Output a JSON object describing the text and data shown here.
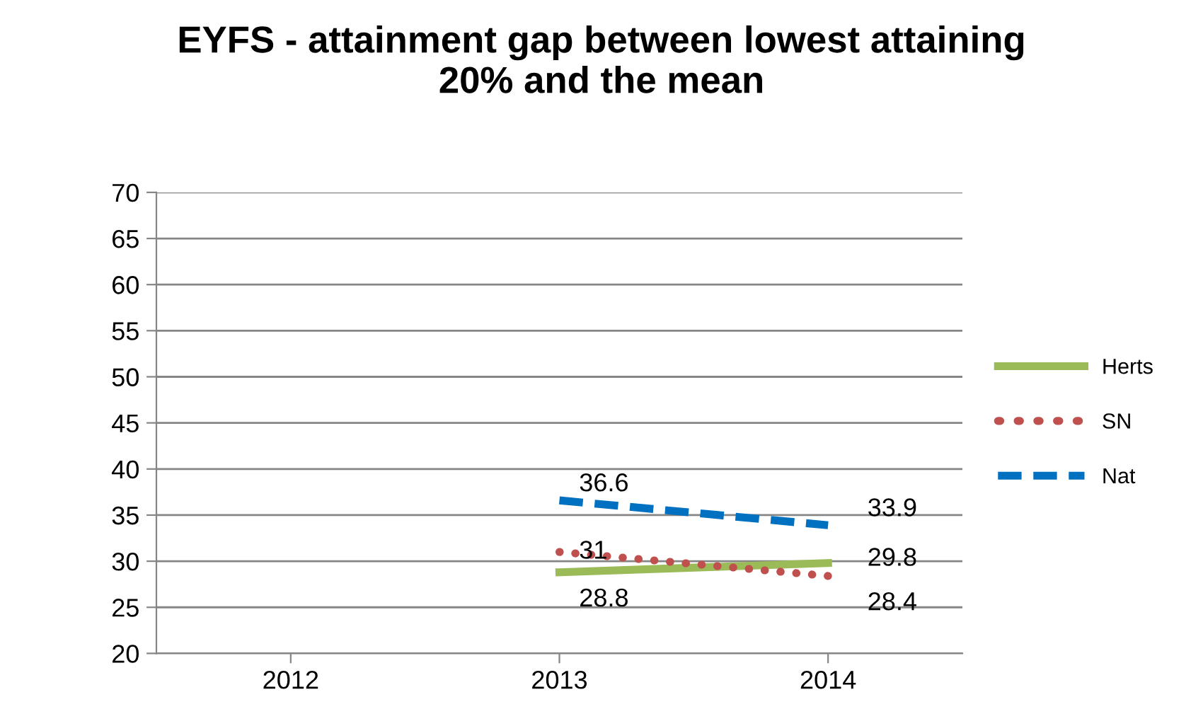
{
  "chart_data": {
    "type": "line",
    "title": "EYFS - attainment gap between lowest attaining\n20% and the mean",
    "categories": [
      "2012",
      "2013",
      "2014"
    ],
    "series": [
      {
        "name": "Herts",
        "color": "#9bbb59",
        "line_style": "solid",
        "values": [
          null,
          28.8,
          29.8
        ]
      },
      {
        "name": "SN",
        "color": "#c0504d",
        "line_style": "dotted",
        "values": [
          null,
          31,
          28.4
        ]
      },
      {
        "name": "Nat",
        "color": "#0070c0",
        "line_style": "dashed",
        "values": [
          null,
          36.6,
          33.9
        ]
      }
    ],
    "ylim": [
      20,
      70
    ],
    "yticks": [
      20,
      25,
      30,
      35,
      40,
      45,
      50,
      55,
      60,
      65,
      70
    ],
    "grid": "y",
    "legend": "right",
    "data_labels": true,
    "marker": "none"
  }
}
